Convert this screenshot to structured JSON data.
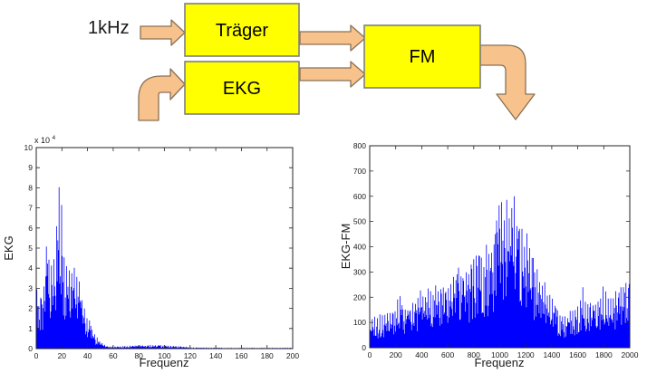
{
  "diagram": {
    "input_label": "1kHz",
    "blocks": {
      "traeger": "Träger",
      "ekg": "EKG",
      "fm": "FM"
    },
    "colors": {
      "block_fill": "#FFFF00",
      "block_border": "#7F7F7F",
      "arrow_fill": "#F7C28B",
      "arrow_border": "#8A7157"
    }
  },
  "chart_data": [
    {
      "type": "line",
      "title": "",
      "xlabel": "Frequenz",
      "ylabel": "EKG",
      "y_scale_base": "x 10",
      "y_scale_exp": "4",
      "xlim": [
        0,
        200
      ],
      "ylim": [
        0,
        10
      ],
      "x_ticks": [
        0,
        20,
        40,
        60,
        80,
        100,
        120,
        140,
        160,
        180,
        200
      ],
      "y_ticks": [
        0,
        1,
        2,
        3,
        4,
        5,
        6,
        7,
        8,
        9,
        10
      ],
      "line_color": "#0000FF",
      "axis_color": "#262626",
      "grid": false,
      "legend": false,
      "envelope": [
        [
          0,
          0.3
        ],
        [
          0.7,
          7.05
        ],
        [
          1.5,
          2.0
        ],
        [
          3,
          3.3
        ],
        [
          5,
          2.6
        ],
        [
          7,
          5.0
        ],
        [
          8.5,
          6.35
        ],
        [
          10,
          5.3
        ],
        [
          12,
          4.2
        ],
        [
          14,
          5.0
        ],
        [
          16,
          6.3
        ],
        [
          17.5,
          8.5
        ],
        [
          18.5,
          8.7
        ],
        [
          20,
          7.3
        ],
        [
          21,
          5.6
        ],
        [
          23,
          4.6
        ],
        [
          25,
          4.5
        ],
        [
          27,
          4.3
        ],
        [
          29,
          4.5
        ],
        [
          31,
          4.4
        ],
        [
          33,
          4.1
        ],
        [
          35,
          3.1
        ],
        [
          37,
          2.4
        ],
        [
          39,
          1.8
        ],
        [
          41,
          1.5
        ],
        [
          43,
          1.2
        ],
        [
          45,
          0.9
        ],
        [
          47,
          0.6
        ],
        [
          50,
          0.35
        ],
        [
          53,
          0.2
        ],
        [
          56,
          0.12
        ],
        [
          60,
          0.1
        ],
        [
          65,
          0.12
        ],
        [
          70,
          0.13
        ],
        [
          75,
          0.15
        ],
        [
          80,
          0.17
        ],
        [
          85,
          0.16
        ],
        [
          90,
          0.2
        ],
        [
          95,
          0.18
        ],
        [
          100,
          0.16
        ],
        [
          105,
          0.15
        ],
        [
          110,
          0.14
        ],
        [
          115,
          0.1
        ],
        [
          120,
          0.06
        ],
        [
          130,
          0.05
        ],
        [
          140,
          0.05
        ],
        [
          150,
          0.04
        ],
        [
          160,
          0.04
        ],
        [
          170,
          0.04
        ],
        [
          180,
          0.04
        ],
        [
          190,
          0.04
        ],
        [
          200,
          0.05
        ]
      ]
    },
    {
      "type": "line",
      "title": "",
      "xlabel": "Frequenz",
      "ylabel": "EKG-FM",
      "xlim": [
        0,
        2000
      ],
      "ylim": [
        0,
        800
      ],
      "x_ticks": [
        0,
        200,
        400,
        600,
        800,
        1000,
        1200,
        1400,
        1600,
        1800,
        2000
      ],
      "y_ticks": [
        0,
        100,
        200,
        300,
        400,
        500,
        600,
        700,
        800
      ],
      "line_color": "#0000FF",
      "axis_color": "#262626",
      "grid": false,
      "legend": false,
      "envelope": [
        [
          0,
          125
        ],
        [
          50,
          130
        ],
        [
          100,
          135
        ],
        [
          150,
          150
        ],
        [
          200,
          160
        ],
        [
          230,
          235
        ],
        [
          260,
          160
        ],
        [
          300,
          165
        ],
        [
          350,
          200
        ],
        [
          380,
          230
        ],
        [
          400,
          225
        ],
        [
          430,
          230
        ],
        [
          450,
          235
        ],
        [
          500,
          250
        ],
        [
          550,
          260
        ],
        [
          600,
          270
        ],
        [
          650,
          300
        ],
        [
          700,
          330
        ],
        [
          720,
          310
        ],
        [
          750,
          320
        ],
        [
          800,
          355
        ],
        [
          820,
          380
        ],
        [
          850,
          400
        ],
        [
          880,
          380
        ],
        [
          900,
          430
        ],
        [
          930,
          440
        ],
        [
          950,
          455
        ],
        [
          980,
          520
        ],
        [
          1000,
          710
        ],
        [
          1020,
          640
        ],
        [
          1040,
          600
        ],
        [
          1060,
          620
        ],
        [
          1080,
          560
        ],
        [
          1100,
          690
        ],
        [
          1120,
          600
        ],
        [
          1140,
          520
        ],
        [
          1160,
          500
        ],
        [
          1180,
          480
        ],
        [
          1200,
          460
        ],
        [
          1220,
          480
        ],
        [
          1250,
          390
        ],
        [
          1280,
          340
        ],
        [
          1300,
          310
        ],
        [
          1320,
          280
        ],
        [
          1350,
          260
        ],
        [
          1380,
          230
        ],
        [
          1400,
          210
        ],
        [
          1420,
          190
        ],
        [
          1450,
          160
        ],
        [
          1480,
          140
        ],
        [
          1500,
          135
        ],
        [
          1520,
          140
        ],
        [
          1550,
          150
        ],
        [
          1600,
          175
        ],
        [
          1640,
          250
        ],
        [
          1660,
          200
        ],
        [
          1700,
          185
        ],
        [
          1720,
          200
        ],
        [
          1750,
          210
        ],
        [
          1780,
          230
        ],
        [
          1800,
          250
        ],
        [
          1820,
          220
        ],
        [
          1850,
          210
        ],
        [
          1880,
          230
        ],
        [
          1900,
          240
        ],
        [
          1920,
          230
        ],
        [
          1950,
          255
        ],
        [
          1980,
          260
        ],
        [
          2000,
          285
        ]
      ]
    }
  ]
}
